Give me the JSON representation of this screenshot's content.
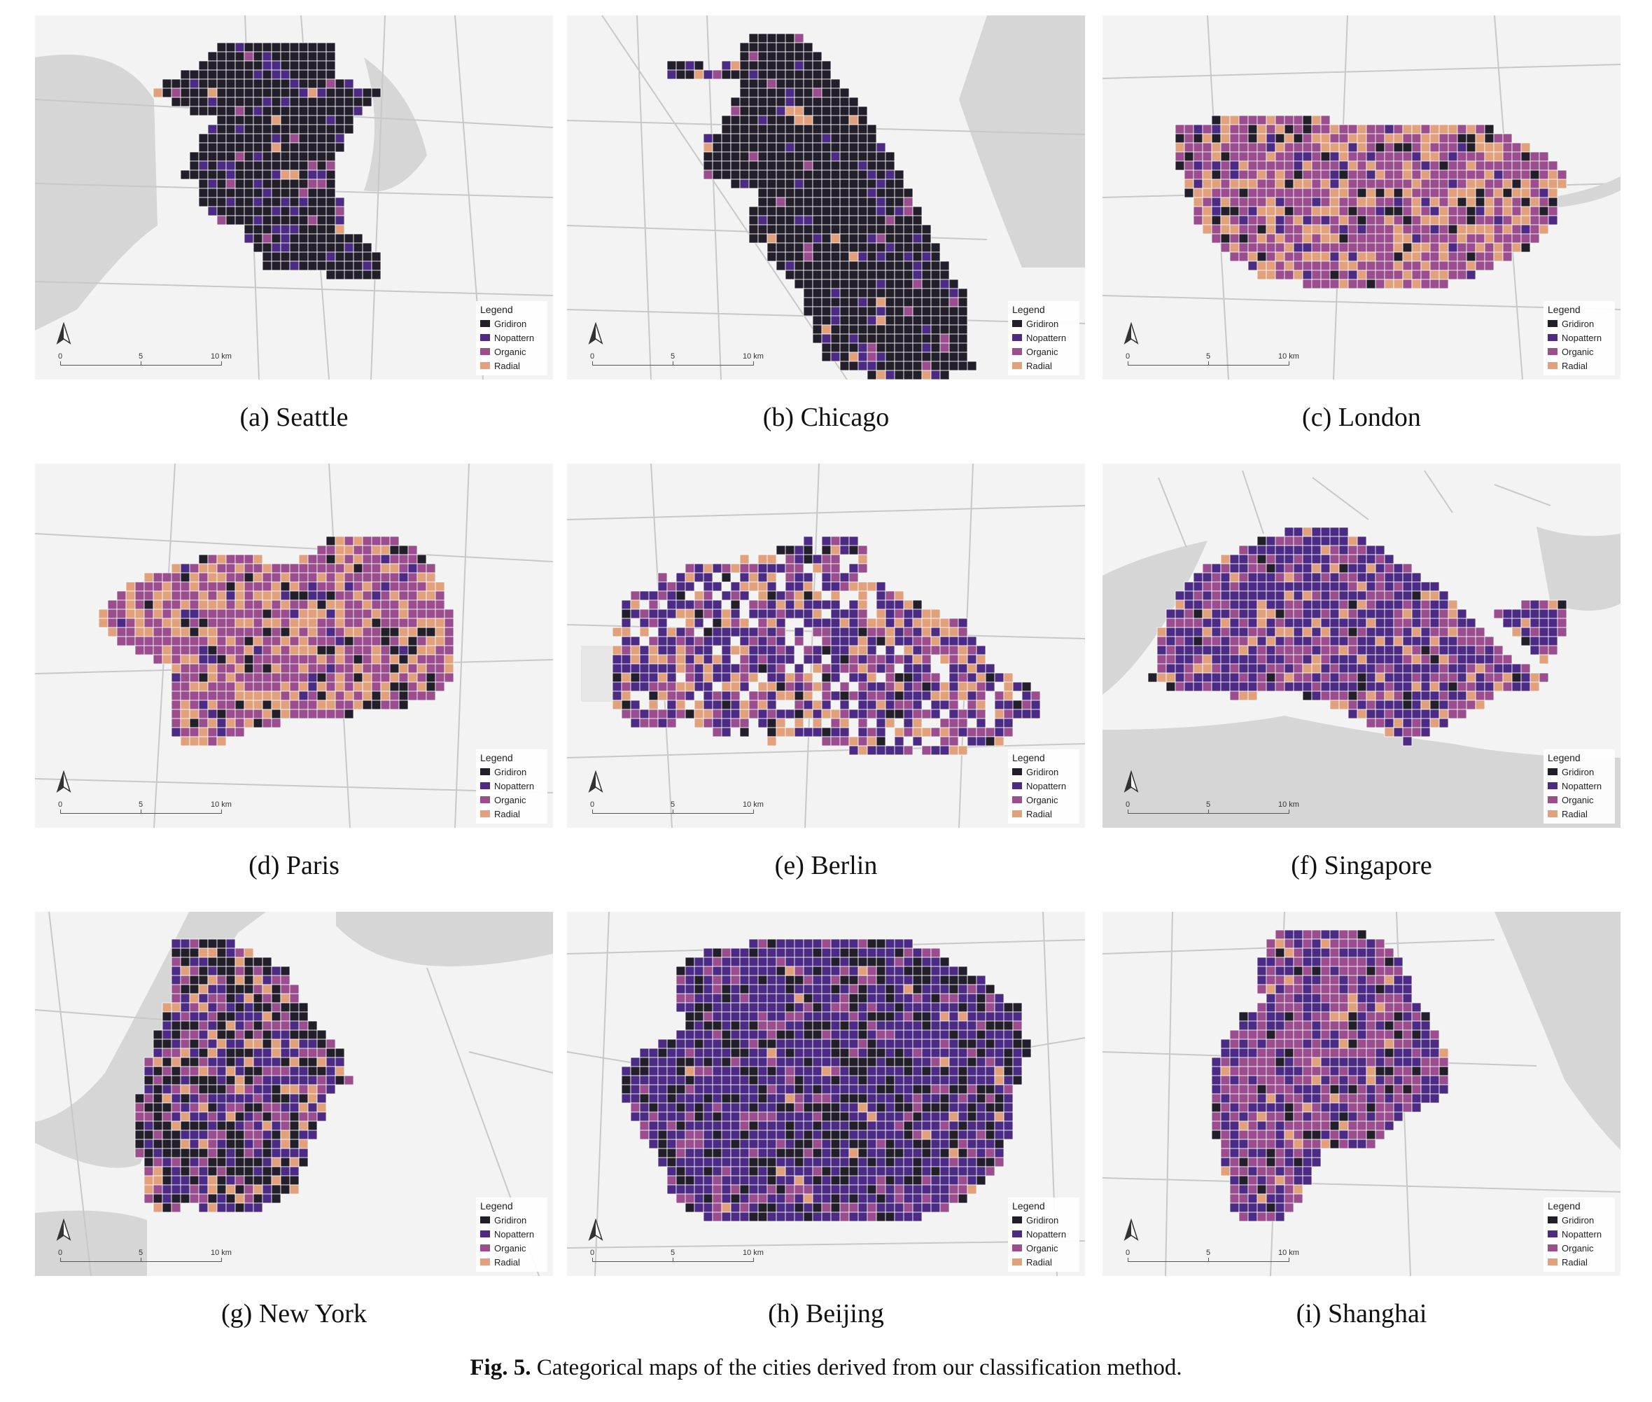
{
  "colors": {
    "gridiron": "#231f2a",
    "nopattern": "#4b2b84",
    "organic": "#9b4e8e",
    "radial": "#e0a17c",
    "map_bg": "#f3f3f3",
    "water": "#d6d6d6",
    "road": "#c8c8c8"
  },
  "legend": {
    "title": "Legend",
    "items": [
      {
        "label": "Gridiron",
        "color": "#231f2a"
      },
      {
        "label": "Nopattern",
        "color": "#4b2b84"
      },
      {
        "label": "Organic",
        "color": "#9b4e8e"
      },
      {
        "label": "Radial",
        "color": "#e0a17c"
      }
    ]
  },
  "panels": [
    {
      "id": "a",
      "caption": "(a)  Seattle",
      "scale": [
        "0",
        "5",
        "10 km"
      ],
      "icon": "north-arrow-icon"
    },
    {
      "id": "b",
      "caption": "(b)  Chicago",
      "scale": [
        "0",
        "5",
        "10 km"
      ],
      "icon": "north-arrow-icon"
    },
    {
      "id": "c",
      "caption": "(c)  London",
      "scale": [
        "0",
        "5",
        "10 km"
      ],
      "icon": "north-arrow-icon"
    },
    {
      "id": "d",
      "caption": "(d)  Paris",
      "scale": [
        "0",
        "5",
        "10 km"
      ],
      "icon": "north-arrow-icon"
    },
    {
      "id": "e",
      "caption": "(e)  Berlin",
      "scale": [
        "0",
        "5",
        "10 km"
      ],
      "icon": "north-arrow-icon"
    },
    {
      "id": "f",
      "caption": "(f)  Singapore",
      "scale": [
        "0",
        "5",
        "10 km"
      ],
      "icon": "north-arrow-icon"
    },
    {
      "id": "g",
      "caption": "(g)  New York",
      "scale": [
        "0",
        "5",
        "10 km"
      ],
      "icon": "north-arrow-icon"
    },
    {
      "id": "h",
      "caption": "(h)  Beijing",
      "scale": [
        "0",
        "5",
        "10 km"
      ],
      "icon": "north-arrow-icon"
    },
    {
      "id": "i",
      "caption": "(i)  Shanghai",
      "scale": [
        "0",
        "5",
        "10 km"
      ],
      "icon": "north-arrow-icon"
    }
  ],
  "figure_caption": {
    "label": "Fig. 5.",
    "text": " Categorical maps of the cities derived from our classification method."
  }
}
